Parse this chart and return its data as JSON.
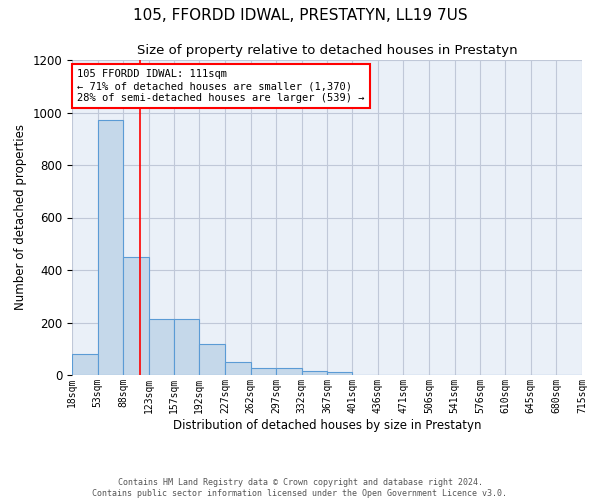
{
  "title": "105, FFORDD IDWAL, PRESTATYN, LL19 7US",
  "subtitle": "Size of property relative to detached houses in Prestatyn",
  "xlabel": "Distribution of detached houses by size in Prestatyn",
  "ylabel": "Number of detached properties",
  "footer": "Contains HM Land Registry data © Crown copyright and database right 2024.\nContains public sector information licensed under the Open Government Licence v3.0.",
  "bar_left_edges": [
    18,
    53,
    88,
    123,
    157,
    192,
    227,
    262,
    297,
    332,
    367,
    401,
    436,
    471,
    506,
    541,
    576,
    610,
    645,
    680
  ],
  "bar_widths": [
    35,
    35,
    35,
    34,
    35,
    35,
    35,
    35,
    35,
    35,
    34,
    35,
    35,
    35,
    35,
    35,
    34,
    35,
    35,
    35
  ],
  "bar_heights": [
    80,
    970,
    450,
    215,
    215,
    120,
    50,
    25,
    25,
    15,
    10,
    0,
    0,
    0,
    0,
    0,
    0,
    0,
    0,
    0
  ],
  "x_tick_labels": [
    "18sqm",
    "53sqm",
    "88sqm",
    "123sqm",
    "157sqm",
    "192sqm",
    "227sqm",
    "262sqm",
    "297sqm",
    "332sqm",
    "367sqm",
    "401sqm",
    "436sqm",
    "471sqm",
    "506sqm",
    "541sqm",
    "576sqm",
    "610sqm",
    "645sqm",
    "680sqm",
    "715sqm"
  ],
  "x_tick_positions": [
    18,
    53,
    88,
    123,
    157,
    192,
    227,
    262,
    297,
    332,
    367,
    401,
    436,
    471,
    506,
    541,
    576,
    610,
    645,
    680,
    715
  ],
  "ylim": [
    0,
    1200
  ],
  "xlim": [
    18,
    715
  ],
  "bar_color": "#c5d8ea",
  "bar_edge_color": "#5b9bd5",
  "bar_edge_width": 0.8,
  "grid_color": "#c0c8d8",
  "background_color": "#eaf0f8",
  "annotation_text": "105 FFORDD IDWAL: 111sqm\n← 71% of detached houses are smaller (1,370)\n28% of semi-detached houses are larger (539) →",
  "annotation_box_color": "white",
  "annotation_border_color": "red",
  "red_line_x": 111,
  "title_fontsize": 11,
  "subtitle_fontsize": 9.5,
  "tick_fontsize": 7,
  "ylabel_fontsize": 8.5,
  "xlabel_fontsize": 8.5,
  "annotation_fontsize": 7.5,
  "footer_fontsize": 6
}
